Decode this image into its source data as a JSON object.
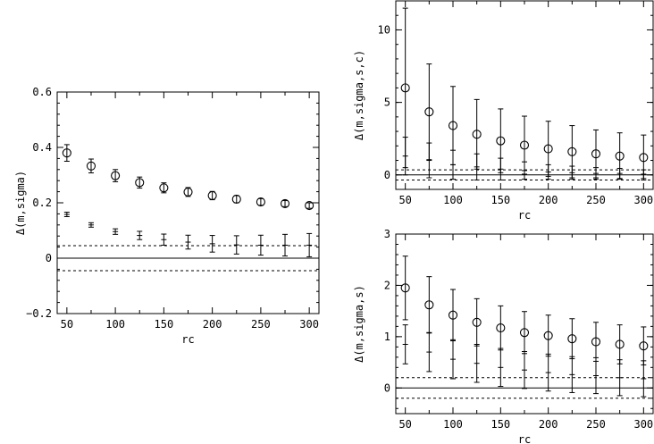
{
  "chart_data": [
    {
      "type": "scatter",
      "xlabel": "rc",
      "ylabel": "Δ(m,sigma)",
      "xlim": [
        40,
        310
      ],
      "ylim": [
        -0.2,
        0.6
      ],
      "xticks": [
        50,
        100,
        150,
        200,
        250,
        300
      ],
      "yticks": [
        -0.2,
        0,
        0.2,
        0.4,
        0.6
      ],
      "ytick_labels": [
        "−0.2",
        "0",
        "0.2",
        "0.4",
        "0.6"
      ],
      "reference_lines": [
        {
          "y": 0,
          "style": "solid"
        },
        {
          "y": 0.045,
          "style": "dashed"
        },
        {
          "y": -0.045,
          "style": "dashed"
        }
      ],
      "series": [
        {
          "marker": "circle",
          "x": [
            50,
            75,
            100,
            125,
            150,
            175,
            200,
            225,
            250,
            275,
            300
          ],
          "y": [
            0.38,
            0.333,
            0.298,
            0.273,
            0.254,
            0.239,
            0.226,
            0.213,
            0.203,
            0.197,
            0.19
          ],
          "err": [
            0.03,
            0.025,
            0.022,
            0.02,
            0.018,
            0.016,
            0.015,
            0.013,
            0.012,
            0.011,
            0.01
          ]
        },
        {
          "marker": "cross",
          "x": [
            50,
            75,
            100,
            125,
            150,
            175,
            200,
            225,
            250,
            275,
            300
          ],
          "y": [
            0.158,
            0.12,
            0.096,
            0.082,
            0.067,
            0.058,
            0.052,
            0.048,
            0.047,
            0.047,
            0.047
          ],
          "err": [
            0.008,
            0.008,
            0.01,
            0.015,
            0.02,
            0.025,
            0.03,
            0.033,
            0.036,
            0.039,
            0.042
          ]
        }
      ]
    },
    {
      "type": "scatter",
      "xlabel": "rc",
      "ylabel": "Δ(m,sigma,s,c)",
      "xlim": [
        40,
        310
      ],
      "ylim": [
        -1,
        12
      ],
      "xticks": [
        50,
        100,
        150,
        200,
        250,
        300
      ],
      "yticks": [
        0,
        5,
        10
      ],
      "ytick_labels": [
        "0",
        "5",
        "10"
      ],
      "reference_lines": [
        {
          "y": 0,
          "style": "solid"
        },
        {
          "y": 0.35,
          "style": "dashed"
        },
        {
          "y": -0.35,
          "style": "dashed"
        }
      ],
      "series": [
        {
          "marker": "circle",
          "x": [
            50,
            75,
            100,
            125,
            150,
            175,
            200,
            225,
            250,
            275,
            300
          ],
          "y": [
            6.0,
            4.35,
            3.4,
            2.8,
            2.35,
            2.05,
            1.8,
            1.6,
            1.45,
            1.3,
            1.2
          ],
          "err": [
            5.5,
            3.3,
            2.7,
            2.4,
            2.2,
            2.0,
            1.9,
            1.8,
            1.65,
            1.6,
            1.55
          ]
        },
        {
          "marker": "cross",
          "x": [
            50,
            75,
            100,
            125,
            150,
            175,
            200,
            225,
            250,
            275,
            300
          ],
          "y": [
            1.3,
            1.0,
            0.7,
            0.55,
            0.4,
            0.3,
            0.2,
            0.15,
            0.1,
            0.1,
            0.05
          ],
          "err": [
            1.3,
            1.2,
            1.0,
            0.9,
            0.75,
            0.6,
            0.5,
            0.45,
            0.4,
            0.35,
            0.3
          ]
        }
      ]
    },
    {
      "type": "scatter",
      "xlabel": "rc",
      "ylabel": "Δ(m,sigma,s)",
      "xlim": [
        40,
        310
      ],
      "ylim": [
        -0.5,
        3
      ],
      "xticks": [
        50,
        100,
        150,
        200,
        250,
        300
      ],
      "yticks": [
        0,
        1,
        2,
        3
      ],
      "ytick_labels": [
        "0",
        "1",
        "2",
        "3"
      ],
      "reference_lines": [
        {
          "y": 0,
          "style": "solid"
        },
        {
          "y": 0.2,
          "style": "dashed"
        },
        {
          "y": -0.2,
          "style": "dashed"
        }
      ],
      "series": [
        {
          "marker": "circle",
          "x": [
            50,
            75,
            100,
            125,
            150,
            175,
            200,
            225,
            250,
            275,
            300
          ],
          "y": [
            1.95,
            1.62,
            1.42,
            1.28,
            1.17,
            1.08,
            1.02,
            0.96,
            0.9,
            0.85,
            0.82
          ],
          "err": [
            0.62,
            0.55,
            0.5,
            0.46,
            0.43,
            0.41,
            0.4,
            0.39,
            0.38,
            0.38,
            0.37
          ]
        },
        {
          "marker": "cross",
          "x": [
            50,
            75,
            100,
            125,
            150,
            175,
            200,
            225,
            250,
            275,
            300
          ],
          "y": [
            0.85,
            0.7,
            0.56,
            0.48,
            0.4,
            0.35,
            0.3,
            0.26,
            0.24,
            0.2,
            0.18
          ],
          "err": [
            0.38,
            0.38,
            0.38,
            0.37,
            0.37,
            0.36,
            0.36,
            0.35,
            0.35,
            0.35,
            0.35
          ]
        }
      ]
    }
  ]
}
